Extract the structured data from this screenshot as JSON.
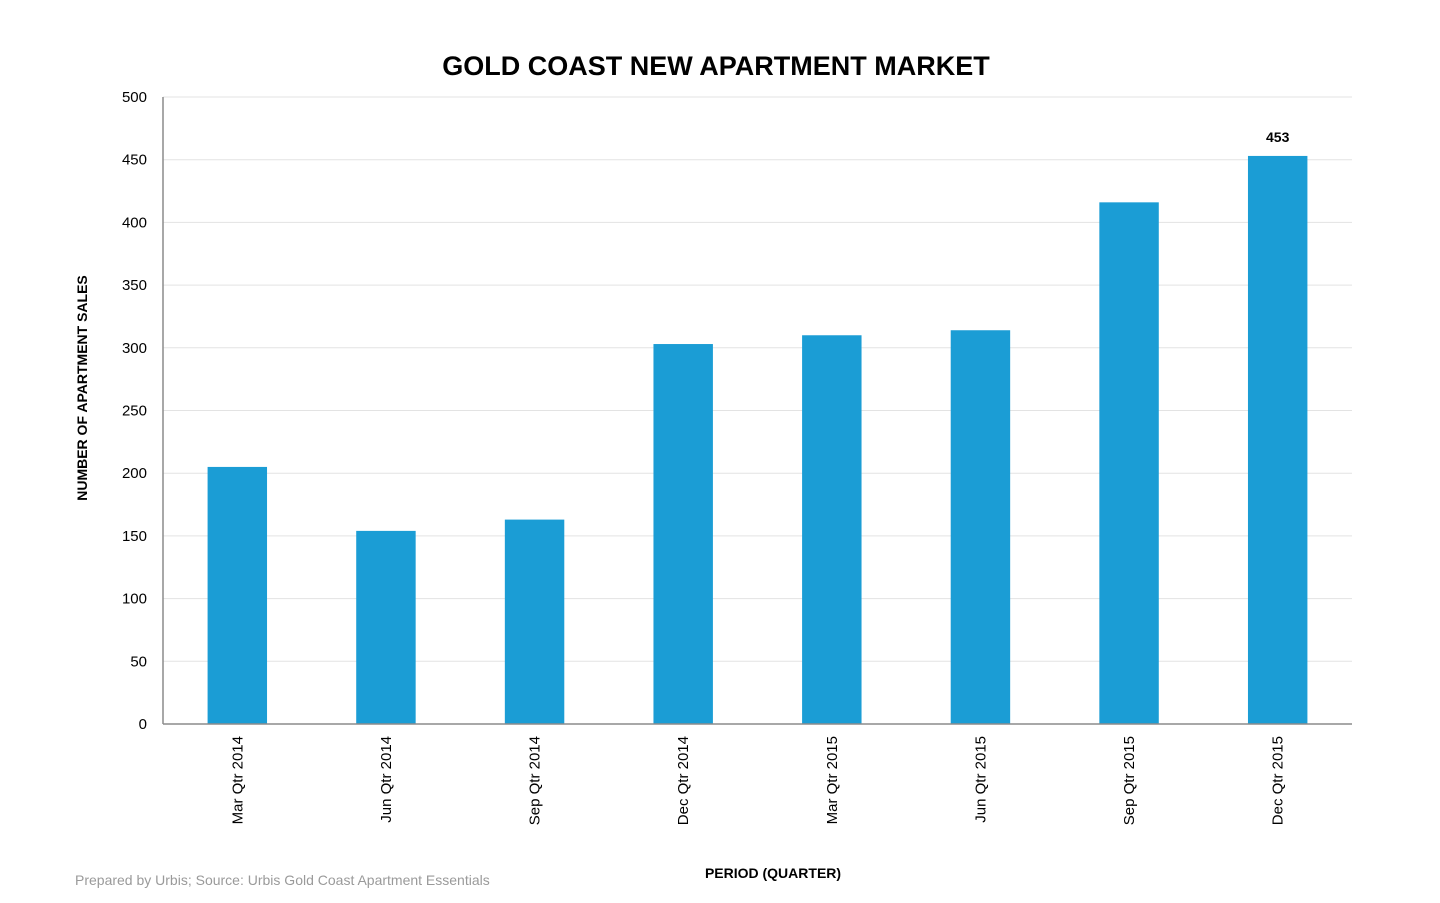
{
  "chart_data": {
    "type": "bar",
    "title": "GOLD COAST NEW APARTMENT MARKET",
    "xlabel": "PERIOD (QUARTER)",
    "ylabel": "NUMBER OF APARTMENT SALES",
    "categories": [
      "Mar Qtr 2014",
      "Jun Qtr 2014",
      "Sep Qtr 2014",
      "Dec Qtr 2014",
      "Mar Qtr 2015",
      "Jun Qtr 2015",
      "Sep Qtr 2015",
      "Dec Qtr 2015"
    ],
    "values": [
      205,
      154,
      163,
      303,
      310,
      314,
      416,
      453
    ],
    "data_labels": [
      "",
      "",
      "",
      "",
      "",
      "",
      "",
      "453"
    ],
    "ylim": [
      0,
      500
    ],
    "yticks": [
      0,
      50,
      100,
      150,
      200,
      250,
      300,
      350,
      400,
      450,
      500
    ],
    "grid": true,
    "legend": "none",
    "bar_color": "#1b9dd5"
  },
  "footer": {
    "source": "Prepared by Urbis; Source: Urbis Gold Coast Apartment Essentials"
  }
}
